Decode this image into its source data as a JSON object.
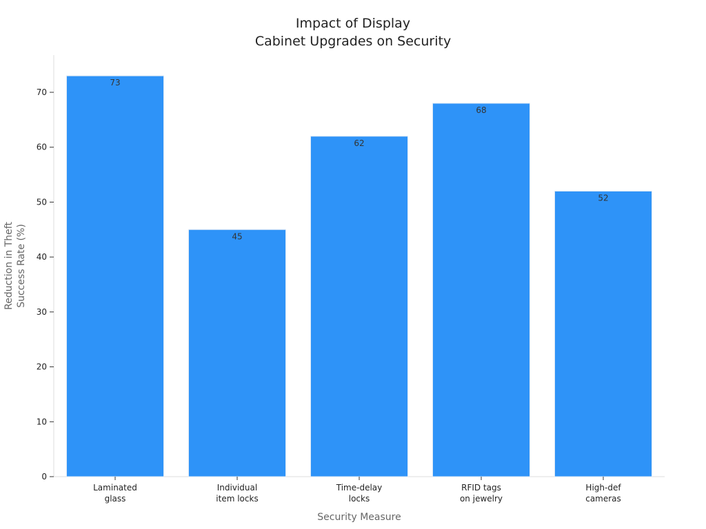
{
  "chart_data": {
    "type": "bar",
    "title": [
      "Impact of Display",
      "Cabinet Upgrades on Security"
    ],
    "xlabel": "Security Measure",
    "ylabel": [
      "Reduction in Theft",
      "Success Rate (%)"
    ],
    "categories": [
      [
        "Laminated",
        "glass"
      ],
      [
        "Individual",
        "item locks"
      ],
      [
        "Time-delay",
        "locks"
      ],
      [
        "RFID tags",
        "on jewelry"
      ],
      [
        "High-def",
        "cameras"
      ]
    ],
    "values": [
      73,
      45,
      62,
      68,
      52
    ],
    "ylim": [
      0,
      77
    ],
    "yticks": [
      0,
      10,
      20,
      30,
      40,
      50,
      60,
      70
    ],
    "grid": false,
    "legend": "none",
    "bar_color": "#2e93f8",
    "bar_edge_color": "#dfe9f5"
  }
}
